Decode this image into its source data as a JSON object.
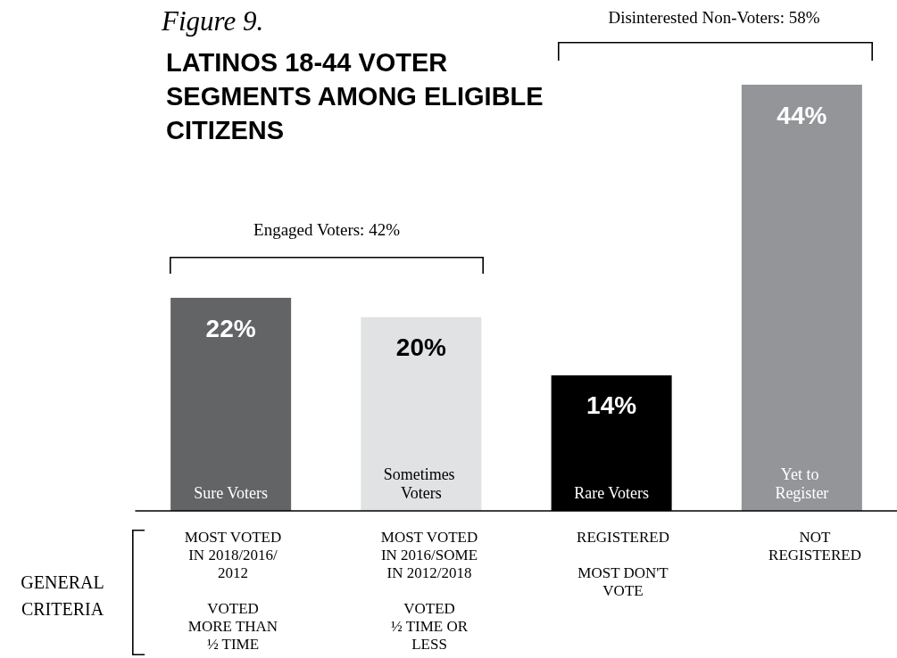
{
  "chart_data": {
    "type": "bar",
    "title": "LATINOS 18-44 VOTER SEGMENTS AMONG ELIGIBLE CITIZENS",
    "subtitle": "Figure 9.",
    "categories": [
      "Sure Voters",
      "Sometimes Voters",
      "Rare Voters",
      "Yet to Register"
    ],
    "values": [
      22,
      20,
      14,
      44
    ],
    "colors": [
      "#636466",
      "#e1e2e3",
      "#000000",
      "#939598"
    ],
    "value_labels": [
      "22%",
      "20%",
      "14%",
      "44%"
    ],
    "annotations": [
      "Engaged Voters: 42%",
      "Disinterested Non-Voters: 58%",
      "GENERAL\nCRITERIA",
      "MOST VOTED\nIN 2018/2016/\n2012\n\nVOTED\nMORE THAN\n½ TIME",
      "MOST VOTED\nIN 2016/SOME\nIN 2012/2018\n\nVOTED\n½ TIME OR\nLESS",
      "REGISTERED\n\nMOST DON'T\nVOTE",
      "NOT\nREGISTERED"
    ],
    "grid": false
  }
}
